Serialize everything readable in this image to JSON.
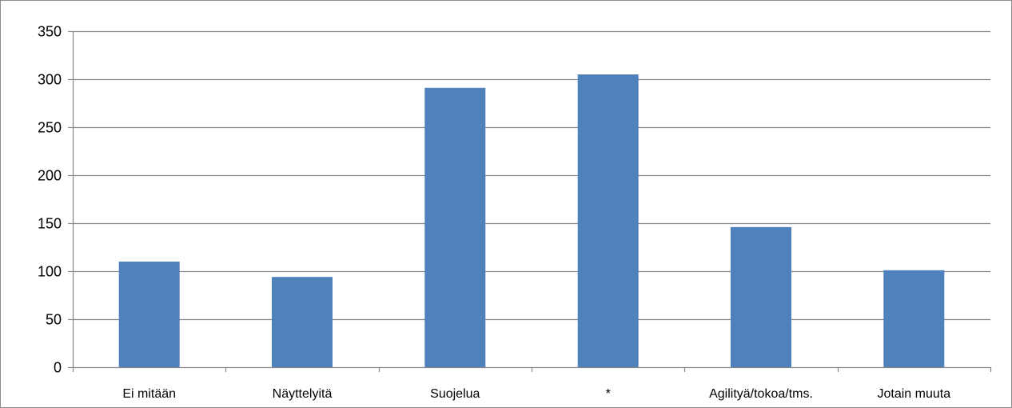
{
  "chart_data": {
    "type": "bar",
    "categories": [
      "Ei mitään",
      "Näyttelyitä",
      "Suojelua",
      "*",
      "Agilityä/tokoa/tms.",
      "Jotain muuta"
    ],
    "values": [
      110,
      94,
      291,
      305,
      146,
      101
    ],
    "ylim": [
      0,
      350
    ],
    "yticks": [
      0,
      50,
      100,
      150,
      200,
      250,
      300,
      350
    ],
    "grid": true,
    "legend": "none",
    "colors": {
      "bar": "#4f81bd",
      "grid": "#868686",
      "axis": "#868686"
    }
  }
}
